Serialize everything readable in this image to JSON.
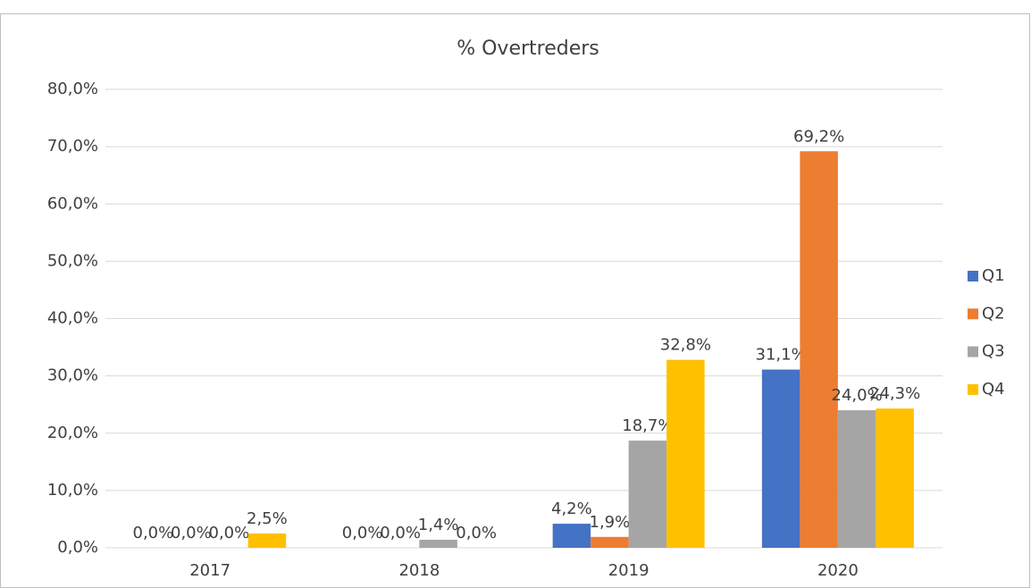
{
  "chart_data": {
    "type": "bar",
    "title": "% Overtreders",
    "categories": [
      "2017",
      "2018",
      "2019",
      "2020"
    ],
    "series": [
      {
        "name": "Q1",
        "color": "#4472c4",
        "values": [
          0,
          0,
          4.2,
          31.1
        ],
        "value_labels": [
          "0,0%",
          "0,0%",
          "4,2%",
          "31,1%"
        ]
      },
      {
        "name": "Q2",
        "color": "#ed7d31",
        "values": [
          0,
          0,
          1.9,
          69.2
        ],
        "value_labels": [
          "0,0%",
          "0,0%",
          "1,9%",
          "69,2%"
        ]
      },
      {
        "name": "Q3",
        "color": "#a5a5a5",
        "values": [
          0,
          1.4,
          18.7,
          24.0
        ],
        "value_labels": [
          "0,0%",
          "1,4%",
          "18,7%",
          "24,0%"
        ]
      },
      {
        "name": "Q4",
        "color": "#ffc000",
        "values": [
          2.5,
          0,
          32.8,
          24.3
        ],
        "value_labels": [
          "2,5%",
          "0,0%",
          "32,8%",
          "24,3%"
        ]
      }
    ],
    "ylim": [
      0,
      80
    ],
    "yticks": [
      {
        "value": 0,
        "label": "0,0%"
      },
      {
        "value": 10,
        "label": "10,0%"
      },
      {
        "value": 20,
        "label": "20,0%"
      },
      {
        "value": 30,
        "label": "30,0%"
      },
      {
        "value": 40,
        "label": "40,0%"
      },
      {
        "value": 50,
        "label": "50,0%"
      },
      {
        "value": 60,
        "label": "60,0%"
      },
      {
        "value": 70,
        "label": "70,0%"
      },
      {
        "value": 80,
        "label": "80,0%"
      }
    ],
    "grid": true,
    "legend": "right"
  }
}
